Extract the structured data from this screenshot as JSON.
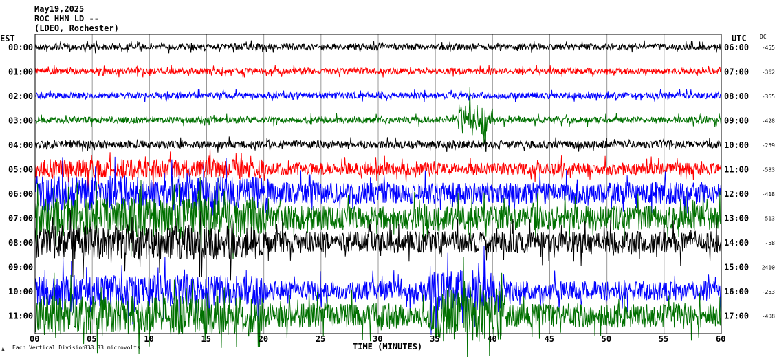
{
  "header": {
    "date": "May19,2025",
    "station": "ROC HHN LD --",
    "network": "(LDEO, Rochester)"
  },
  "chart_data": {
    "type": "line",
    "title": "May19,2025 ROC HHN LD --",
    "xlabel": "TIME (MINUTES)",
    "left_axis_label": "EST",
    "right_axis_label": "UTC",
    "dc_label": "DC",
    "xlim": [
      0,
      60
    ],
    "x_ticks": [
      "00",
      "05",
      "10",
      "15",
      "20",
      "25",
      "30",
      "35",
      "40",
      "45",
      "50",
      "55",
      "60"
    ],
    "scale_note_label": "Each Vertical Division =",
    "scale_note_value": "333.33 microvolts",
    "corner_mark": "A",
    "series_colors": [
      "#000000",
      "#ff0000",
      "#0000ff",
      "#007000"
    ],
    "rows": [
      {
        "est": "00:00",
        "utc": "06:00",
        "dc": "-455",
        "noise": 0.12
      },
      {
        "est": "01:00",
        "utc": "07:00",
        "dc": "-362",
        "noise": 0.12
      },
      {
        "est": "02:00",
        "utc": "08:00",
        "dc": "-365",
        "noise": 0.13
      },
      {
        "est": "03:00",
        "utc": "09:00",
        "dc": "-428",
        "noise": 0.13
      },
      {
        "est": "04:00",
        "utc": "10:00",
        "dc": "-259",
        "noise": 0.15
      },
      {
        "est": "05:00",
        "utc": "11:00",
        "dc": "-583",
        "noise": 0.25
      },
      {
        "est": "06:00",
        "utc": "12:00",
        "dc": "-418",
        "noise": 0.45
      },
      {
        "est": "07:00",
        "utc": "13:00",
        "dc": "-513",
        "noise": 0.5
      },
      {
        "est": "08:00",
        "utc": "14:00",
        "dc": "-58",
        "noise": 0.45
      },
      {
        "est": "09:00",
        "utc": "15:00",
        "dc": "2410",
        "noise": 0.0
      },
      {
        "est": "10:00",
        "utc": "16:00",
        "dc": "-253",
        "noise": 0.4
      },
      {
        "est": "11:00",
        "utc": "17:00",
        "dc": "-408",
        "noise": 0.5
      }
    ]
  }
}
